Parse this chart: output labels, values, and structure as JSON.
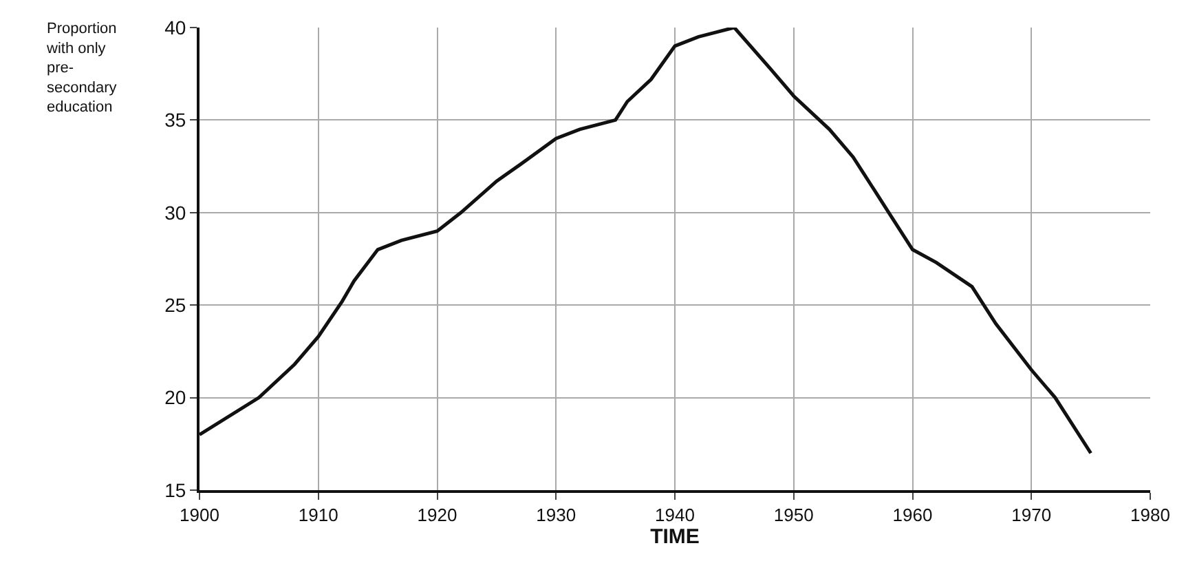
{
  "chart_data": {
    "type": "line",
    "xlabel": "TIME",
    "ylabel": "Proportion\nwith only\npre-\nsecondary\neducation",
    "x": [
      1900,
      1905,
      1908,
      1910,
      1912,
      1913,
      1915,
      1917,
      1920,
      1922,
      1925,
      1927,
      1930,
      1932,
      1935,
      1936,
      1938,
      1940,
      1942,
      1945,
      1948,
      1950,
      1953,
      1955,
      1957,
      1958,
      1960,
      1962,
      1965,
      1967,
      1970,
      1972,
      1975
    ],
    "values": [
      18,
      20,
      21.8,
      23.3,
      25.2,
      26.3,
      28,
      28.5,
      29,
      30,
      31.7,
      32.6,
      34,
      34.5,
      35,
      36,
      37.2,
      39,
      39.5,
      40,
      37.8,
      36.3,
      34.5,
      33,
      31,
      30,
      28,
      27.3,
      26,
      24,
      21.5,
      20,
      17
    ],
    "color": "#111111",
    "xlim": [
      1900,
      1980
    ],
    "xticks": [
      1900,
      1910,
      1920,
      1930,
      1940,
      1950,
      1960,
      1970,
      1980
    ],
    "ylim": [
      15,
      40
    ],
    "yticks": [
      15,
      20,
      25,
      30,
      35,
      40
    ],
    "grid": true,
    "marker": "none",
    "line_style": "solid"
  }
}
